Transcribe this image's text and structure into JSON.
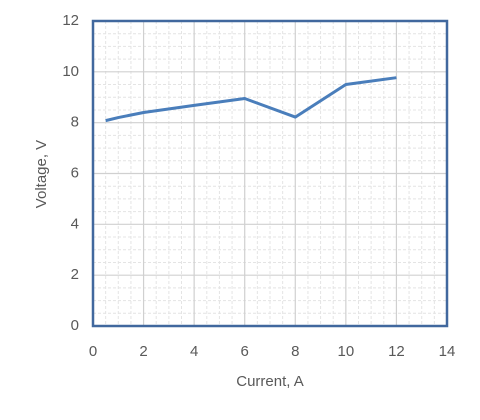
{
  "chart_data": {
    "type": "line",
    "x": [
      0.5,
      1,
      2,
      4,
      6,
      8,
      10,
      12
    ],
    "values": [
      8.08,
      8.2,
      8.4,
      8.68,
      8.95,
      8.22,
      9.5,
      9.77
    ],
    "color": "#4a7ebb",
    "xlabel": "Current, A",
    "ylabel": "Voltage, V",
    "xlim": [
      0,
      14
    ],
    "ylim": [
      0,
      12
    ],
    "xticks": [
      0,
      2,
      4,
      6,
      8,
      10,
      12,
      14
    ],
    "yticks": [
      0,
      2,
      4,
      6,
      8,
      10,
      12
    ],
    "grid": true,
    "minor_grid": true,
    "frame_color": "#41689e"
  }
}
